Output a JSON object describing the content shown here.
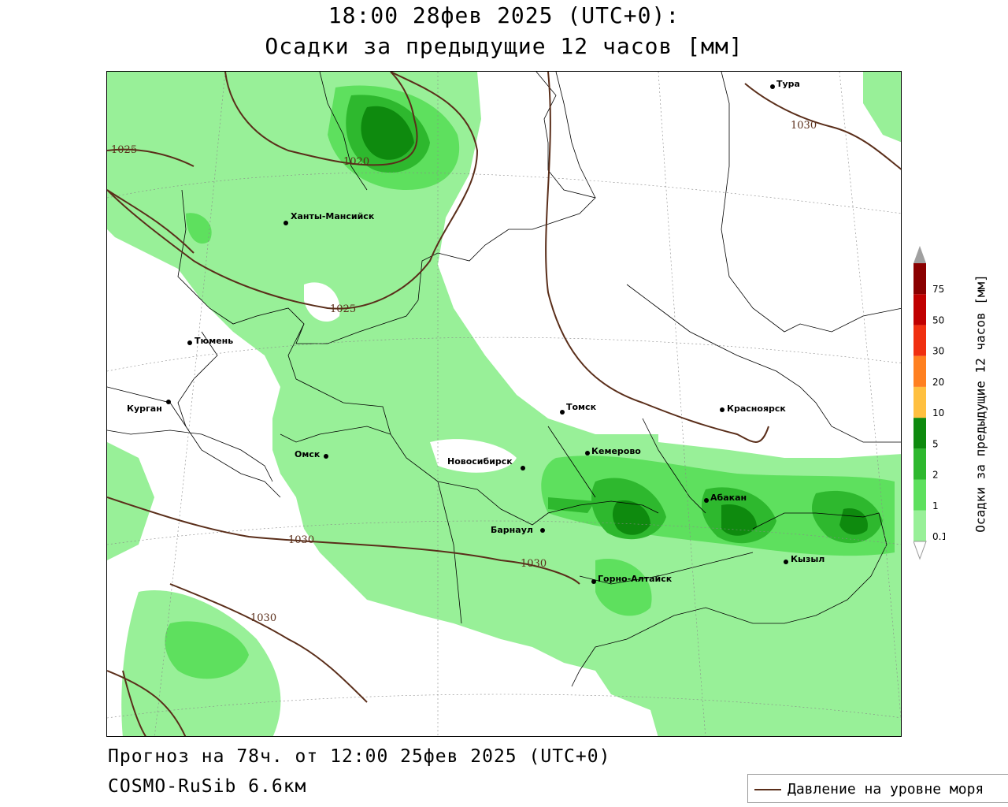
{
  "header": {
    "title_line1": "18:00 28фев 2025 (UTC+0):",
    "title_line2": "Осадки за предыдущие 12 часов [мм]"
  },
  "footer": {
    "forecast": "Прогноз на 78ч. от 12:00 25фев 2025 (UTC+0)",
    "model": "COSMO-RuSib 6.6км"
  },
  "legend": {
    "pressure_label": "Давление на уровне моря",
    "pressure_color": "#5a2e1a"
  },
  "colorbar": {
    "title": "Осадки за предыдущие 12 часов [мм]",
    "ticks": [
      "0.1",
      "1",
      "2",
      "5",
      "10",
      "20",
      "30",
      "50",
      "75"
    ],
    "colors": [
      "#98f098",
      "#5ee05e",
      "#2eb82e",
      "#0e8a0e",
      "#ffc040",
      "#ff8020",
      "#f03010",
      "#c00000",
      "#8a0000"
    ],
    "over_color": "#a0a0a0"
  },
  "cities": [
    {
      "name": "Тура"
    },
    {
      "name": "Ханты-Мансийск"
    },
    {
      "name": "Тюмень"
    },
    {
      "name": "Курган"
    },
    {
      "name": "Омск"
    },
    {
      "name": "Новосибирск"
    },
    {
      "name": "Томск"
    },
    {
      "name": "Кемерово"
    },
    {
      "name": "Красноярск"
    },
    {
      "name": "Абакан"
    },
    {
      "name": "Барнаул"
    },
    {
      "name": "Горно-Алтайск"
    },
    {
      "name": "Кызыл"
    }
  ],
  "isobar_labels": [
    "1025",
    "1020",
    "1025",
    "1030",
    "1030",
    "1030",
    "1030"
  ]
}
